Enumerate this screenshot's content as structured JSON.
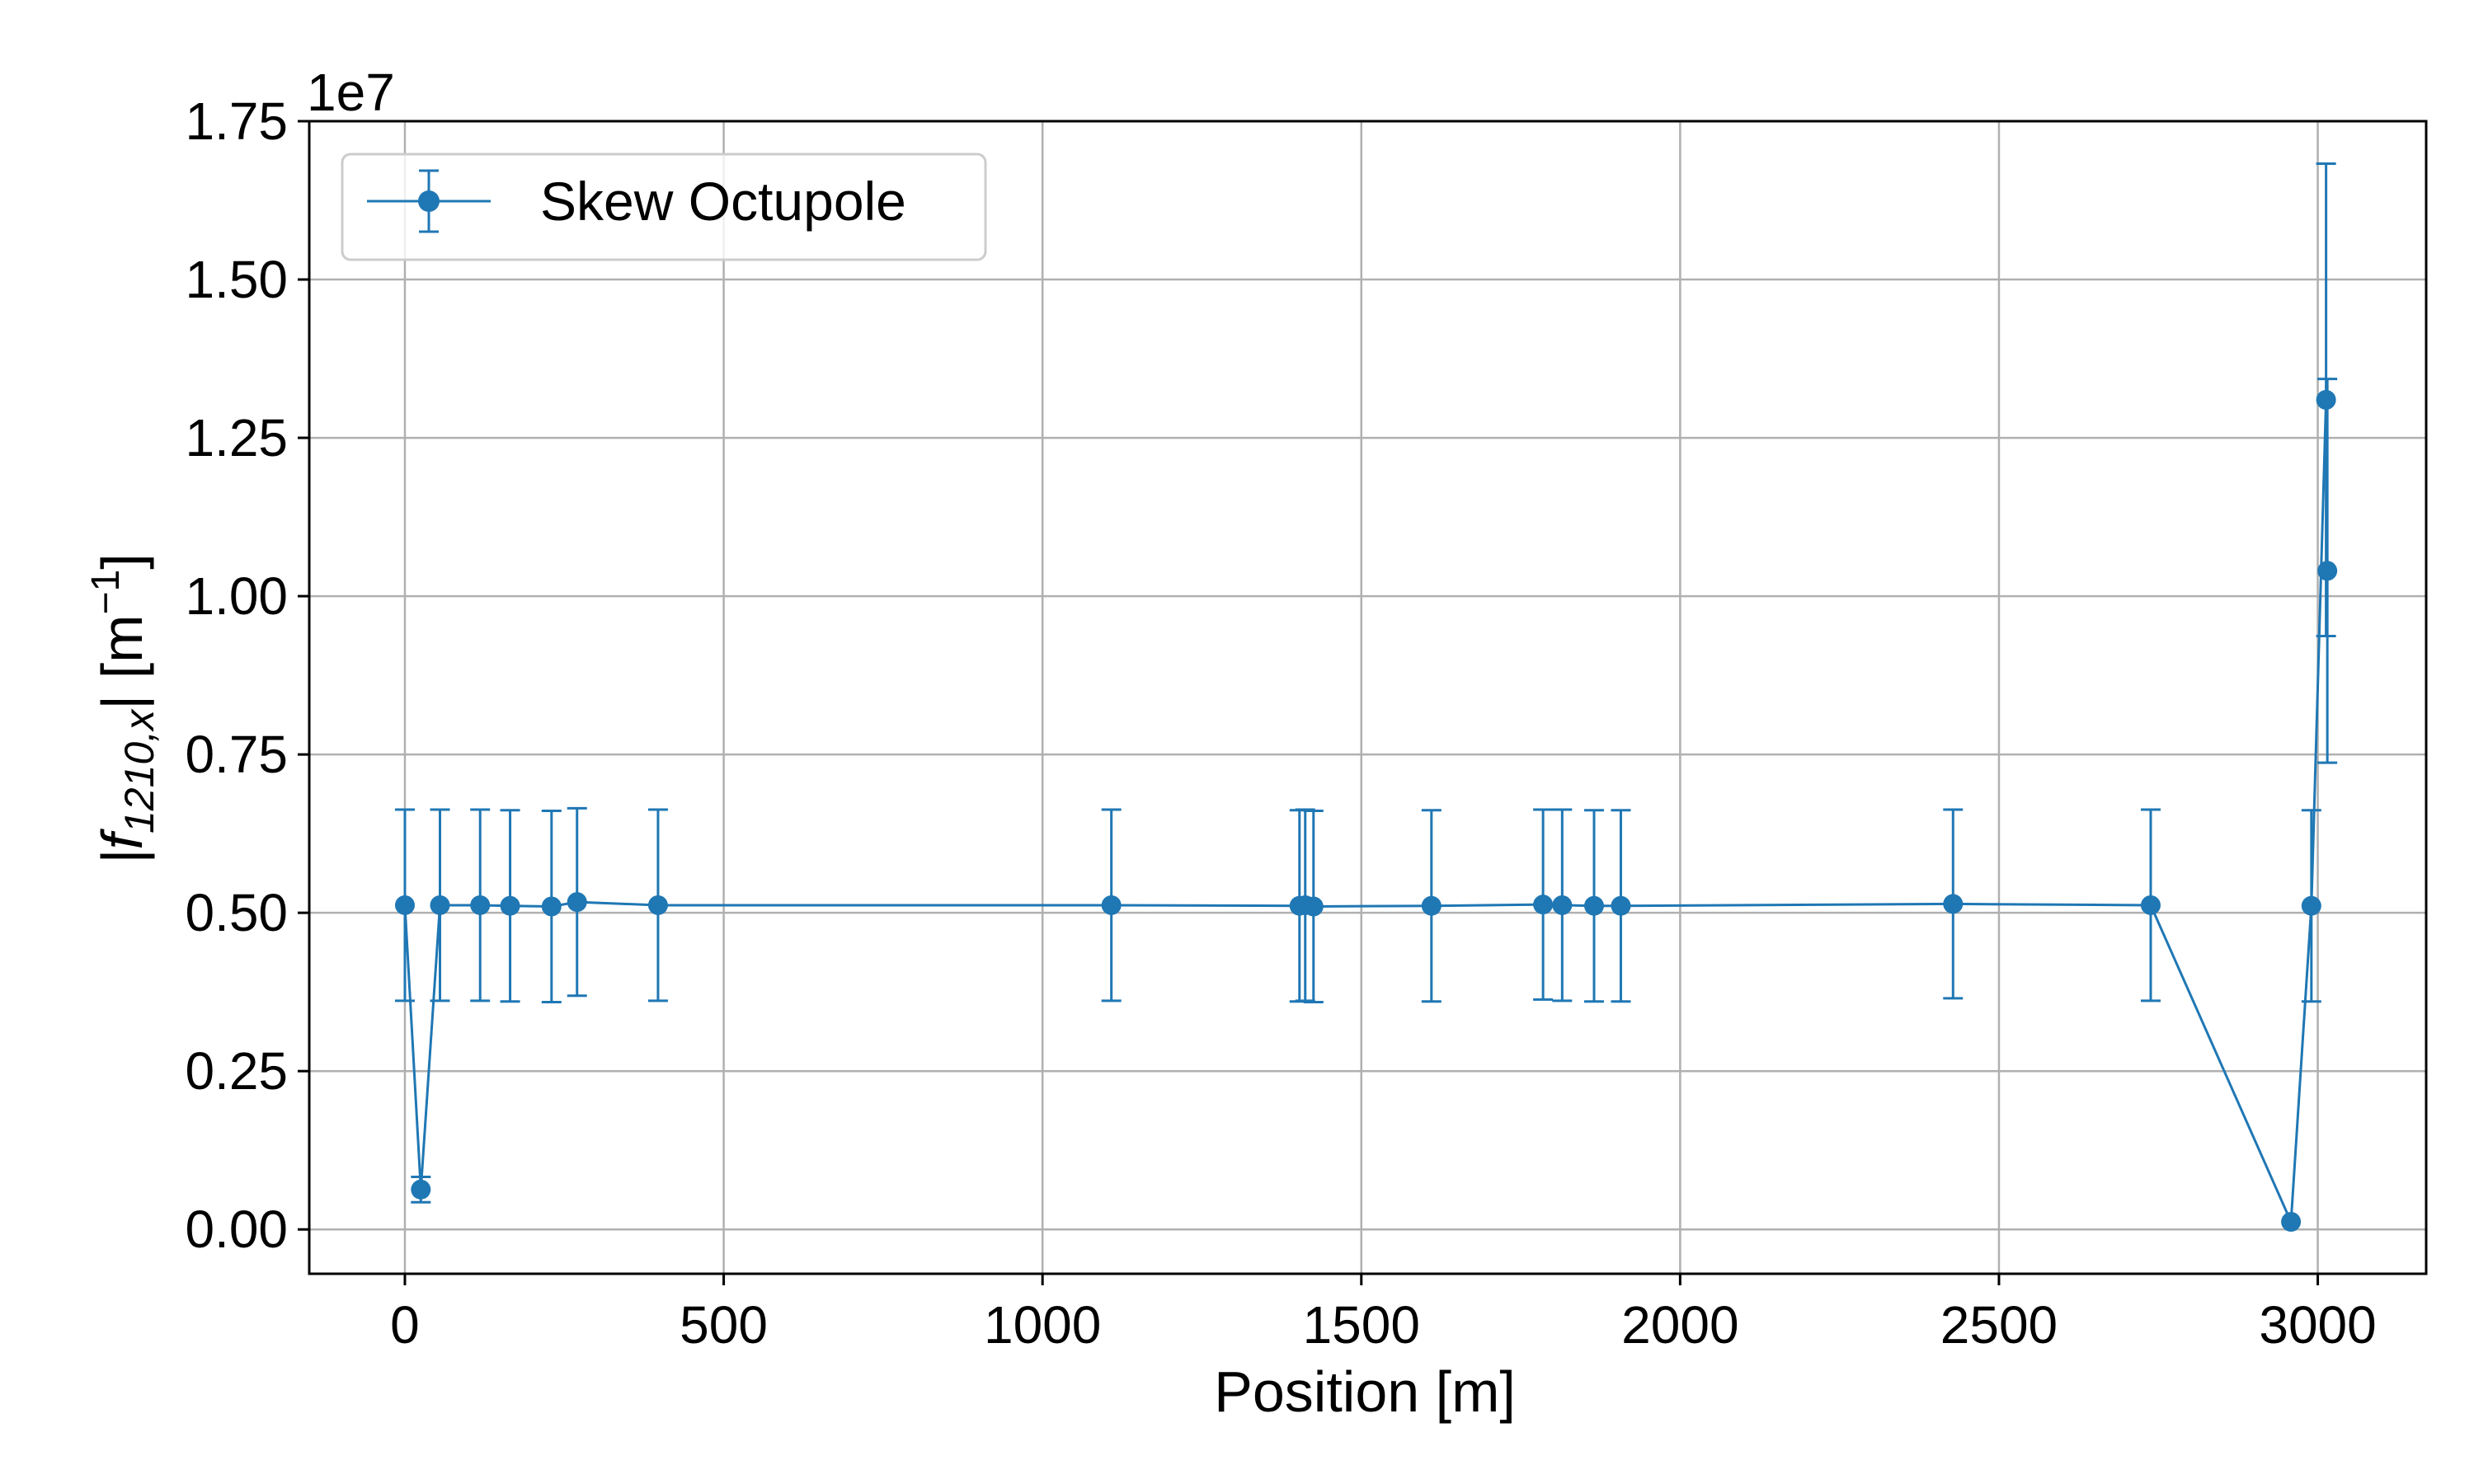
{
  "chart_data": {
    "type": "line",
    "xlabel": "Position [m]",
    "ylabel_base": "|f",
    "ylabel_sub": "1210,x",
    "ylabel_tail": "| [m",
    "ylabel_sup": "−1",
    "ylabel_close": "]",
    "offset_text": "1e7",
    "xlim": [
      -150,
      3170
    ],
    "ylim": [
      -0.07,
      1.75
    ],
    "xticks": [
      0,
      500,
      1000,
      1500,
      2000,
      2500,
      3000
    ],
    "xtick_labels": [
      "0",
      "500",
      "1000",
      "1500",
      "2000",
      "2500",
      "3000"
    ],
    "yticks": [
      0.0,
      0.25,
      0.5,
      0.75,
      1.0,
      1.25,
      1.5,
      1.75
    ],
    "ytick_labels": [
      "0.00",
      "0.25",
      "0.50",
      "0.75",
      "1.00",
      "1.25",
      "1.50",
      "1.75"
    ],
    "grid": true,
    "legend_position": "upper-left",
    "series": [
      {
        "name": "Skew Octupole",
        "color": "#1f77b4",
        "x": [
          0,
          25,
          55,
          118,
          165,
          230,
          270,
          397,
          1108,
          1403,
          1412,
          1425,
          1610,
          1785,
          1815,
          1865,
          1907,
          2428,
          2738,
          2958,
          2990,
          3013,
          3015
        ],
        "y": [
          0.512,
          0.063,
          0.512,
          0.512,
          0.511,
          0.51,
          0.517,
          0.512,
          0.512,
          0.511,
          0.512,
          0.51,
          0.511,
          0.513,
          0.512,
          0.511,
          0.511,
          0.514,
          0.512,
          0.012,
          0.511,
          1.31,
          1.04
        ],
        "err": [
          0.151,
          0.02,
          0.151,
          0.151,
          0.151,
          0.151,
          0.148,
          0.151,
          0.151,
          0.151,
          0.151,
          0.151,
          0.151,
          0.15,
          0.151,
          0.151,
          0.151,
          0.149,
          0.151,
          0.0,
          0.151,
          0.373,
          0.303
        ]
      }
    ]
  }
}
